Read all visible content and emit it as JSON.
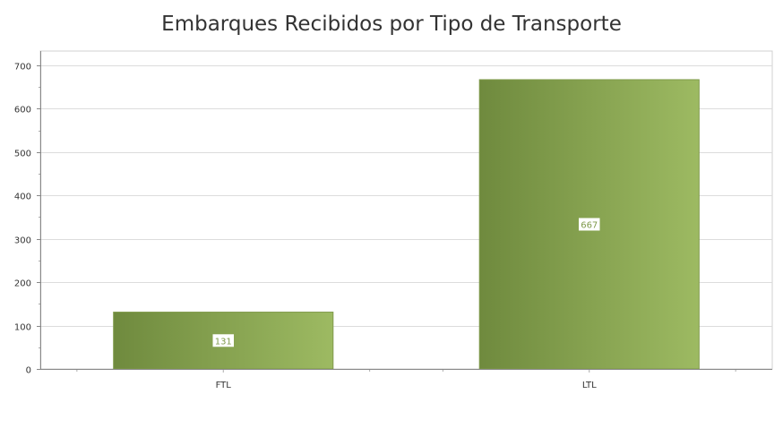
{
  "chart_data": {
    "type": "bar",
    "title": "Embarques Recibidos por Tipo de Transporte",
    "categories": [
      "FTL",
      "LTL"
    ],
    "values": [
      131,
      667
    ],
    "xlabel": "",
    "ylabel": "",
    "ylim": [
      0,
      733
    ],
    "yticks": [
      0,
      100,
      200,
      300,
      400,
      500,
      600,
      700
    ],
    "grid": true,
    "legend": "none",
    "bar_color_dark": "#6f8a3e",
    "bar_color_light": "#9dba62",
    "label_color": "#7f9a4b"
  }
}
